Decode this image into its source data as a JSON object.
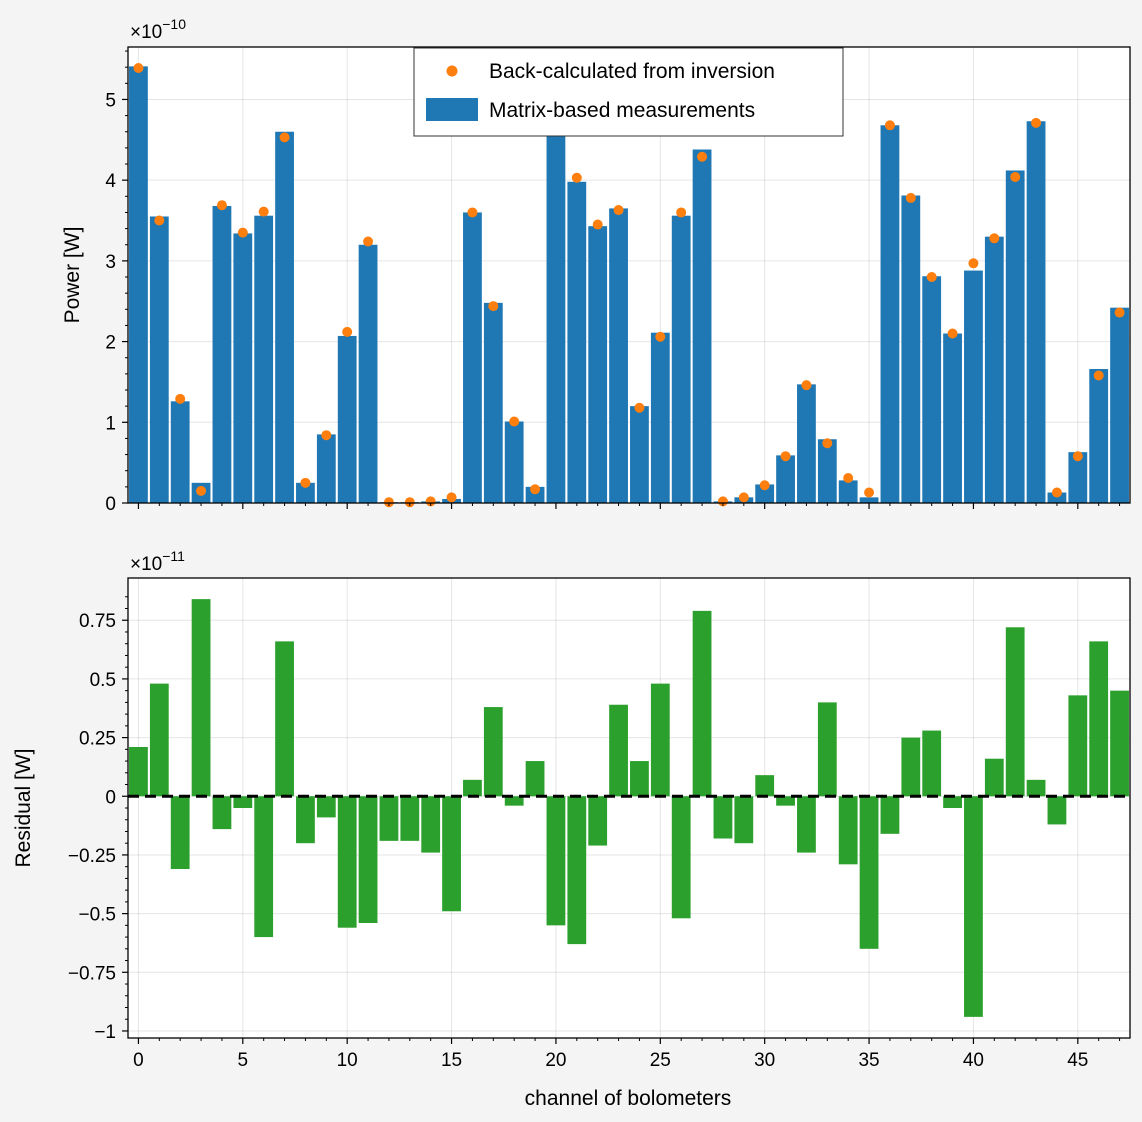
{
  "chart_data": [
    {
      "type": "bar",
      "panel": "top",
      "ylabel": "Power [W]",
      "xlabel": "",
      "y_offset_label": "×10",
      "y_offset_exponent": "−10",
      "ylim": [
        0,
        5.65
      ],
      "xlim": [
        -0.5,
        47.5
      ],
      "grid": true,
      "legend_position": "top-center",
      "yticks": [
        0,
        1,
        2,
        3,
        4,
        5
      ],
      "ytick_labels": [
        "0",
        "1",
        "2",
        "3",
        "4",
        "5"
      ],
      "x": [
        0,
        1,
        2,
        3,
        4,
        5,
        6,
        7,
        8,
        9,
        10,
        11,
        12,
        13,
        14,
        15,
        16,
        17,
        18,
        19,
        20,
        21,
        22,
        23,
        24,
        25,
        26,
        27,
        28,
        29,
        30,
        31,
        32,
        33,
        34,
        35,
        36,
        37,
        38,
        39,
        40,
        41,
        42,
        43,
        44,
        45,
        46,
        47
      ],
      "series": [
        {
          "name": "Matrix-based measurements",
          "kind": "bar",
          "color": "#1f77b4",
          "values": [
            5.41,
            3.55,
            1.26,
            0.25,
            3.68,
            3.34,
            3.56,
            4.6,
            0.25,
            0.85,
            2.07,
            3.2,
            0.01,
            0.01,
            0.02,
            0.05,
            3.6,
            2.48,
            1.01,
            0.2,
            4.68,
            3.98,
            3.43,
            3.65,
            1.2,
            2.11,
            3.56,
            4.38,
            0.02,
            0.07,
            0.23,
            0.59,
            1.47,
            0.79,
            0.28,
            0.07,
            4.68,
            3.81,
            2.81,
            2.1,
            2.88,
            3.3,
            4.12,
            4.73,
            0.13,
            0.63,
            1.66,
            2.42
          ]
        },
        {
          "name": "Back-calculated from inversion",
          "kind": "point",
          "color": "#ff7f0e",
          "values": [
            5.39,
            3.5,
            1.29,
            0.15,
            3.69,
            3.35,
            3.61,
            4.53,
            0.25,
            0.84,
            2.12,
            3.24,
            0.01,
            0.01,
            0.02,
            0.07,
            3.6,
            2.44,
            1.01,
            0.17,
            4.72,
            4.03,
            3.45,
            3.63,
            1.18,
            2.06,
            3.6,
            4.29,
            0.02,
            0.07,
            0.22,
            0.58,
            1.46,
            0.74,
            0.31,
            0.13,
            4.68,
            3.78,
            2.8,
            2.1,
            2.97,
            3.28,
            4.04,
            4.71,
            0.13,
            0.58,
            1.58,
            2.36
          ]
        }
      ]
    },
    {
      "type": "bar",
      "panel": "bottom",
      "xlabel": "channel of bolometers",
      "ylabel": "Residual [W]",
      "y_offset_label": "×10",
      "y_offset_exponent": "−11",
      "ylim": [
        -1.03,
        0.93
      ],
      "xlim": [
        -0.5,
        48
      ],
      "grid": true,
      "zero_line": {
        "style": "dashed",
        "color": "#000000"
      },
      "yticks": [
        -1,
        -0.75,
        -0.5,
        -0.25,
        0,
        0.25,
        0.5,
        0.75
      ],
      "ytick_labels": [
        "−1",
        "−0.75",
        "−0.5",
        "−0.25",
        "0",
        "0.25",
        "0.5",
        "0.75"
      ],
      "xticks": [
        0,
        5,
        10,
        15,
        20,
        25,
        30,
        35,
        40,
        45
      ],
      "xtick_labels": [
        "0",
        "5",
        "10",
        "15",
        "20",
        "25",
        "30",
        "35",
        "40",
        "45"
      ],
      "x": [
        0,
        1,
        2,
        3,
        4,
        5,
        6,
        7,
        8,
        9,
        10,
        11,
        12,
        13,
        14,
        15,
        16,
        17,
        18,
        19,
        20,
        21,
        22,
        23,
        24,
        25,
        26,
        27,
        28,
        29,
        30,
        31,
        32,
        33,
        34,
        35,
        36,
        37,
        38,
        39,
        40,
        41,
        42,
        43,
        44,
        45,
        46,
        47
      ],
      "series": [
        {
          "kind": "bar",
          "color": "#2ca02c",
          "values": [
            0.21,
            0.48,
            -0.31,
            0.84,
            -0.14,
            -0.05,
            -0.6,
            0.66,
            -0.2,
            -0.09,
            -0.56,
            -0.54,
            -0.19,
            -0.19,
            -0.24,
            -0.49,
            0.07,
            0.38,
            -0.04,
            0.15,
            -0.55,
            -0.63,
            -0.21,
            0.39,
            0.15,
            0.48,
            -0.52,
            0.79,
            -0.18,
            -0.2,
            0.09,
            -0.04,
            -0.24,
            0.4,
            -0.29,
            -0.65,
            -0.16,
            0.25,
            0.28,
            -0.05,
            -0.94,
            0.16,
            0.72,
            0.07,
            -0.12,
            0.43,
            0.66,
            0.45
          ]
        }
      ]
    }
  ]
}
